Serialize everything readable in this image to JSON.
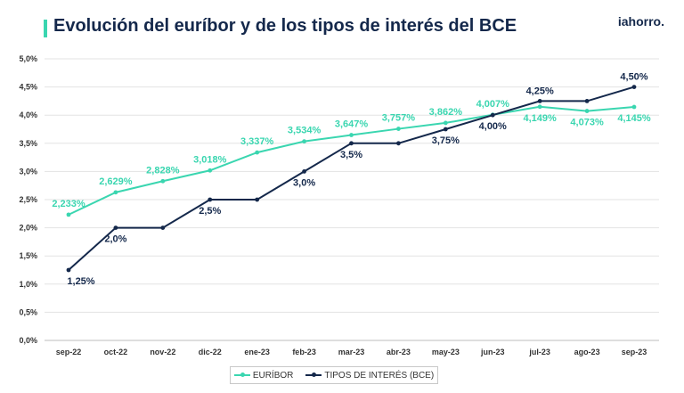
{
  "header": {
    "title": "Evolución del euríbor y de los tipos de interés del BCE",
    "logo": "iahorro."
  },
  "colors": {
    "euribor": "#3ad6b0",
    "bce": "#14284b",
    "grid": "#e3e3e3"
  },
  "chart_data": {
    "type": "line",
    "categories": [
      "sep-22",
      "oct-22",
      "nov-22",
      "dic-22",
      "ene-23",
      "feb-23",
      "mar-23",
      "abr-23",
      "may-23",
      "jun-23",
      "jul-23",
      "ago-23",
      "sep-23"
    ],
    "ylim": [
      0,
      5
    ],
    "yticks": [
      "0,0%",
      "0,5%",
      "1,0%",
      "1,5%",
      "2,0%",
      "2,5%",
      "3,0%",
      "3,5%",
      "4,0%",
      "4,5%",
      "5,0%"
    ],
    "grid": true,
    "legend_position": "bottom",
    "series": [
      {
        "name": "EURÍBOR",
        "values": [
          2.233,
          2.629,
          2.828,
          3.018,
          3.337,
          3.534,
          3.647,
          3.757,
          3.862,
          4.007,
          4.149,
          4.073,
          4.145
        ],
        "labels": [
          "2,233%",
          "2,629%",
          "2,828%",
          "3,018%",
          "3,337%",
          "3,534%",
          "3,647%",
          "3,757%",
          "3,862%",
          "4,007%",
          "4,149%",
          "4,073%",
          "4,145%"
        ]
      },
      {
        "name": "TIPOS DE INTERÉS (BCE)",
        "values": [
          1.25,
          2.0,
          2.0,
          2.5,
          2.5,
          3.0,
          3.5,
          3.5,
          3.75,
          4.0,
          4.25,
          4.25,
          4.5
        ],
        "labels": [
          "1,25%",
          "2,0%",
          "",
          "2,5%",
          "",
          "3,0%",
          "3,5%",
          "",
          "3,75%",
          "4,00%",
          "4,25%",
          "",
          "4,50%"
        ]
      }
    ]
  }
}
